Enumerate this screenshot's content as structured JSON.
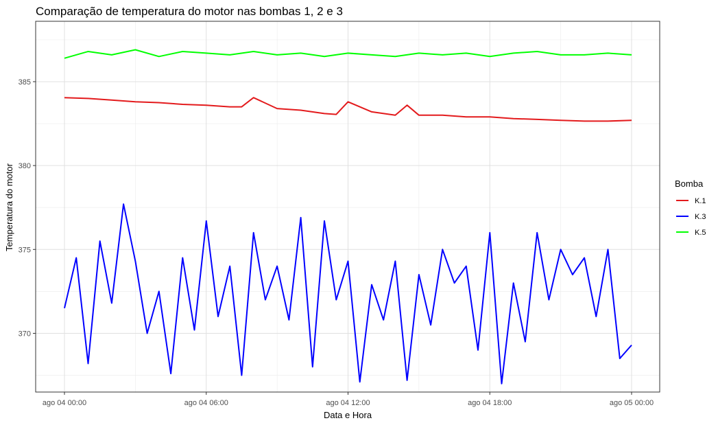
{
  "chart_data": {
    "type": "line",
    "title": "Comparação de temperatura do motor nas bombas 1, 2 e 3",
    "xlabel": "Data e Hora",
    "ylabel": "Temperatura do motor",
    "x_axis": {
      "type": "datetime",
      "range": [
        "2023-08-04 00:00",
        "2023-08-05 00:00"
      ],
      "ticks": [
        "ago 04 00:00",
        "ago 04 06:00",
        "ago 04 12:00",
        "ago 04 18:00",
        "ago 05 00:00"
      ]
    },
    "y_axis": {
      "ylim": [
        366.5,
        388.6
      ],
      "ticks": [
        370,
        375,
        380,
        385
      ]
    },
    "grid": true,
    "legend": {
      "title": "Bomba",
      "position": "right"
    },
    "series": [
      {
        "name": "K.1",
        "color": "#e31a1c",
        "x_hours": [
          0,
          1,
          2,
          3,
          4,
          5,
          6,
          7,
          7.5,
          8,
          9,
          10,
          11,
          11.5,
          12,
          13,
          14,
          14.5,
          15,
          16,
          17,
          18,
          19,
          20,
          21,
          22,
          23,
          24
        ],
        "values": [
          384.05,
          384.0,
          383.9,
          383.8,
          383.75,
          383.65,
          383.6,
          383.5,
          383.5,
          384.05,
          383.4,
          383.3,
          383.1,
          383.05,
          383.8,
          383.2,
          383.0,
          383.6,
          383.0,
          383.0,
          382.9,
          382.9,
          382.8,
          382.75,
          382.7,
          382.65,
          382.65,
          382.7
        ]
      },
      {
        "name": "K.3",
        "color": "#0000ff",
        "x_hours": [
          0,
          0.5,
          1,
          1.5,
          2,
          2.5,
          3,
          3.5,
          4,
          4.5,
          5,
          5.5,
          6,
          6.5,
          7,
          7.5,
          8,
          8.5,
          9,
          9.5,
          10,
          10.5,
          11,
          11.5,
          12,
          12.5,
          13,
          13.5,
          14,
          14.5,
          15,
          15.5,
          16,
          16.5,
          17,
          17.5,
          18,
          18.5,
          19,
          19.5,
          20,
          20.5,
          21,
          21.5,
          22,
          22.5,
          23,
          23.5,
          24
        ],
        "values": [
          371.5,
          374.5,
          368.2,
          375.5,
          371.8,
          377.7,
          374.3,
          370.0,
          372.5,
          367.6,
          374.5,
          370.2,
          376.7,
          371.0,
          374.0,
          367.5,
          376.0,
          372.0,
          374.0,
          370.8,
          376.9,
          368.0,
          376.7,
          372.0,
          374.3,
          367.1,
          372.9,
          370.8,
          374.3,
          367.2,
          373.5,
          370.5,
          375.0,
          373.0,
          374.0,
          369.0,
          376.0,
          367.0,
          373.0,
          369.5,
          376.0,
          372.0,
          375.0,
          373.5,
          374.5,
          371.0,
          375.0,
          368.5,
          369.3
        ]
      },
      {
        "name": "K.5",
        "color": "#00ff00",
        "x_hours": [
          0,
          1,
          2,
          3,
          4,
          5,
          6,
          7,
          8,
          9,
          10,
          11,
          12,
          13,
          14,
          15,
          16,
          17,
          18,
          19,
          20,
          21,
          22,
          23,
          24
        ],
        "values": [
          386.4,
          386.8,
          386.6,
          386.9,
          386.5,
          386.8,
          386.7,
          386.6,
          386.8,
          386.6,
          386.7,
          386.5,
          386.7,
          386.6,
          386.5,
          386.7,
          386.6,
          386.7,
          386.5,
          386.7,
          386.8,
          386.6,
          386.6,
          386.7,
          386.6
        ]
      }
    ]
  }
}
